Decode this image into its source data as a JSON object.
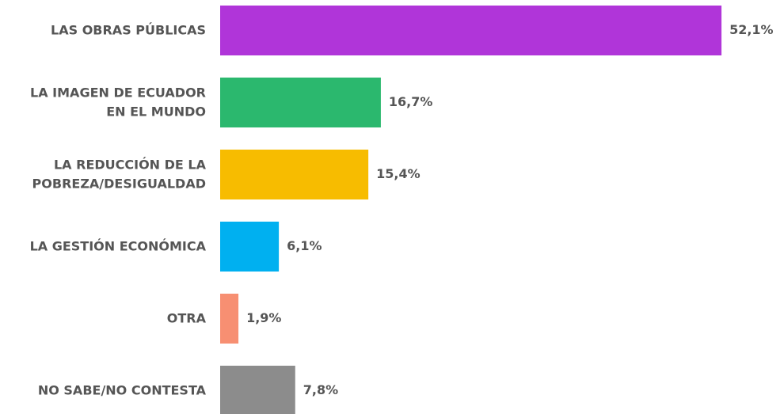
{
  "chart_data": {
    "type": "barh",
    "categories": [
      "LAS OBRAS PÚBLICAS",
      "LA IMAGEN DE ECUADOR\nEN EL MUNDO",
      "LA REDUCCIÓN DE LA\nPOBREZA/DESIGUALDAD",
      "LA GESTIÓN ECONÓMICA",
      "OTRA",
      "NO SABE/NO CONTESTA"
    ],
    "values": [
      52.1,
      16.7,
      15.4,
      6.1,
      1.9,
      7.8
    ],
    "value_labels": [
      "52,1%",
      "16,7%",
      "15,4%",
      "6,1%",
      "1,9%",
      "7,8%"
    ],
    "colors": [
      "#b035d9",
      "#2bb86e",
      "#f7bc00",
      "#00b0f0",
      "#f78f72",
      "#8c8c8c"
    ],
    "xlim": [
      0,
      53
    ]
  }
}
